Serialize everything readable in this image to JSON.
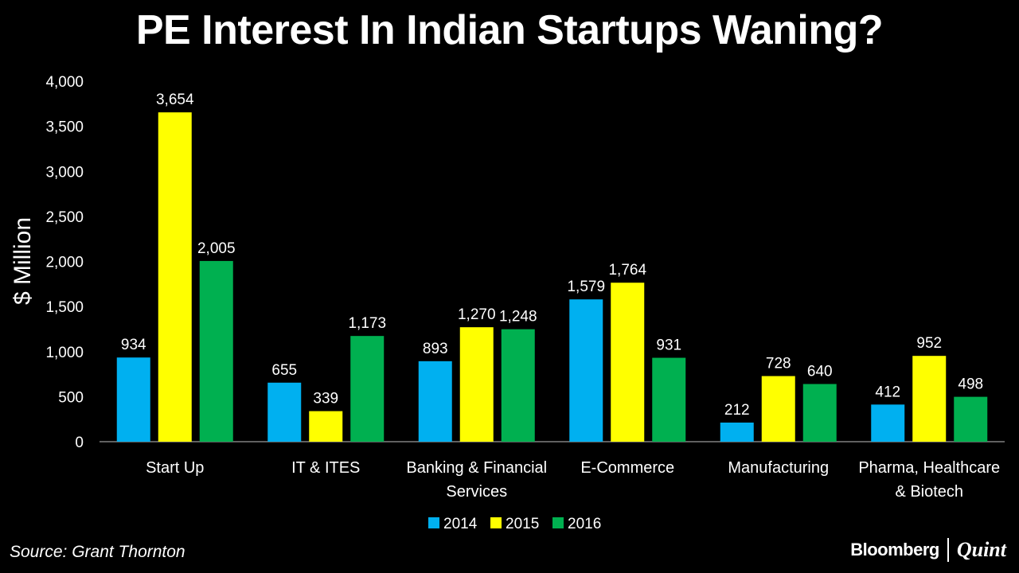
{
  "header": {
    "title": "PE Interest In Indian Startups Waning?"
  },
  "chart_data": {
    "type": "bar",
    "title": "PE Interest In Indian Startups Waning?",
    "ylabel": "$ Million",
    "xlabel": "",
    "ylim": [
      0,
      4000
    ],
    "yticks": [
      0,
      500,
      1000,
      1500,
      2000,
      2500,
      3000,
      3500,
      4000
    ],
    "ytick_labels": [
      "0",
      "500",
      "1,000",
      "1,500",
      "2,000",
      "2,500",
      "3,000",
      "3,500",
      "4,000"
    ],
    "categories": [
      [
        "Start Up"
      ],
      [
        "IT & ITES"
      ],
      [
        "Banking & Financial",
        "Services"
      ],
      [
        "E-Commerce"
      ],
      [
        "Manufacturing"
      ],
      [
        "Pharma, Healthcare",
        "& Biotech"
      ]
    ],
    "series": [
      {
        "name": "2014",
        "color": "#00B0F0",
        "values": [
          934,
          655,
          893,
          1579,
          212,
          412
        ],
        "labels": [
          "934",
          "655",
          "893",
          "1,579",
          "212",
          "412"
        ]
      },
      {
        "name": "2015",
        "color": "#FFFF00",
        "values": [
          3654,
          339,
          1270,
          1764,
          728,
          952
        ],
        "labels": [
          "3,654",
          "339",
          "1,270",
          "1,764",
          "728",
          "952"
        ]
      },
      {
        "name": "2016",
        "color": "#00B050",
        "values": [
          2005,
          1173,
          1248,
          931,
          640,
          498
        ],
        "labels": [
          "2,005",
          "1,173",
          "1,248",
          "931",
          "640",
          "498"
        ]
      }
    ],
    "legend_position": "bottom",
    "grid": false
  },
  "footer": {
    "source": "Source: Grant Thornton",
    "brand_primary": "Bloomberg",
    "brand_secondary": "Quint"
  }
}
